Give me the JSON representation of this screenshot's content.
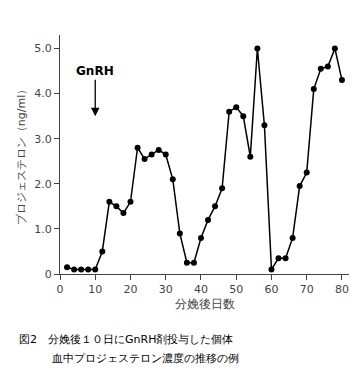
{
  "chart_data": {
    "type": "line",
    "x": [
      2,
      4,
      6,
      8,
      10,
      12,
      14,
      16,
      18,
      20,
      22,
      24,
      26,
      28,
      30,
      32,
      34,
      36,
      38,
      40,
      42,
      44,
      46,
      48,
      50,
      52,
      54,
      56,
      58,
      60,
      62,
      64,
      66,
      68,
      70,
      72,
      74,
      76,
      78,
      80
    ],
    "values": [
      0.15,
      0.1,
      0.1,
      0.1,
      0.1,
      0.5,
      1.6,
      1.5,
      1.35,
      1.6,
      2.8,
      2.55,
      2.65,
      2.75,
      2.65,
      2.1,
      0.9,
      0.25,
      0.25,
      0.8,
      1.2,
      1.5,
      1.9,
      3.6,
      3.7,
      3.5,
      2.6,
      5.0,
      3.3,
      0.1,
      0.35,
      0.35,
      0.8,
      1.95,
      2.25,
      4.1,
      4.55,
      4.6,
      5.0,
      4.3
    ],
    "color": "#000000",
    "marker": "circle",
    "xlabel": "分娩後日数",
    "ylabel": "プロジェステロン（ng/ml）",
    "xlim": [
      0,
      82
    ],
    "ylim": [
      0,
      5.3
    ],
    "xticks": [
      0,
      10,
      20,
      30,
      40,
      50,
      60,
      70,
      80
    ],
    "yticks": [
      0,
      {
        "value": 1.0,
        "label": "1.0"
      },
      {
        "value": 2.0,
        "label": "2.0"
      },
      {
        "value": 3.0,
        "label": "3.0"
      },
      {
        "value": 4.0,
        "label": "4.0"
      },
      {
        "value": 5.0,
        "label": "5.0"
      }
    ],
    "grid": false,
    "annotations": [
      {
        "text": "GnRH",
        "x": 10,
        "y": 3.5
      }
    ],
    "caption": [
      "図2　分娩後１０日にGnRH剤投与した個体",
      "　　　血中プロジェステロン濃度の推移の例"
    ]
  }
}
